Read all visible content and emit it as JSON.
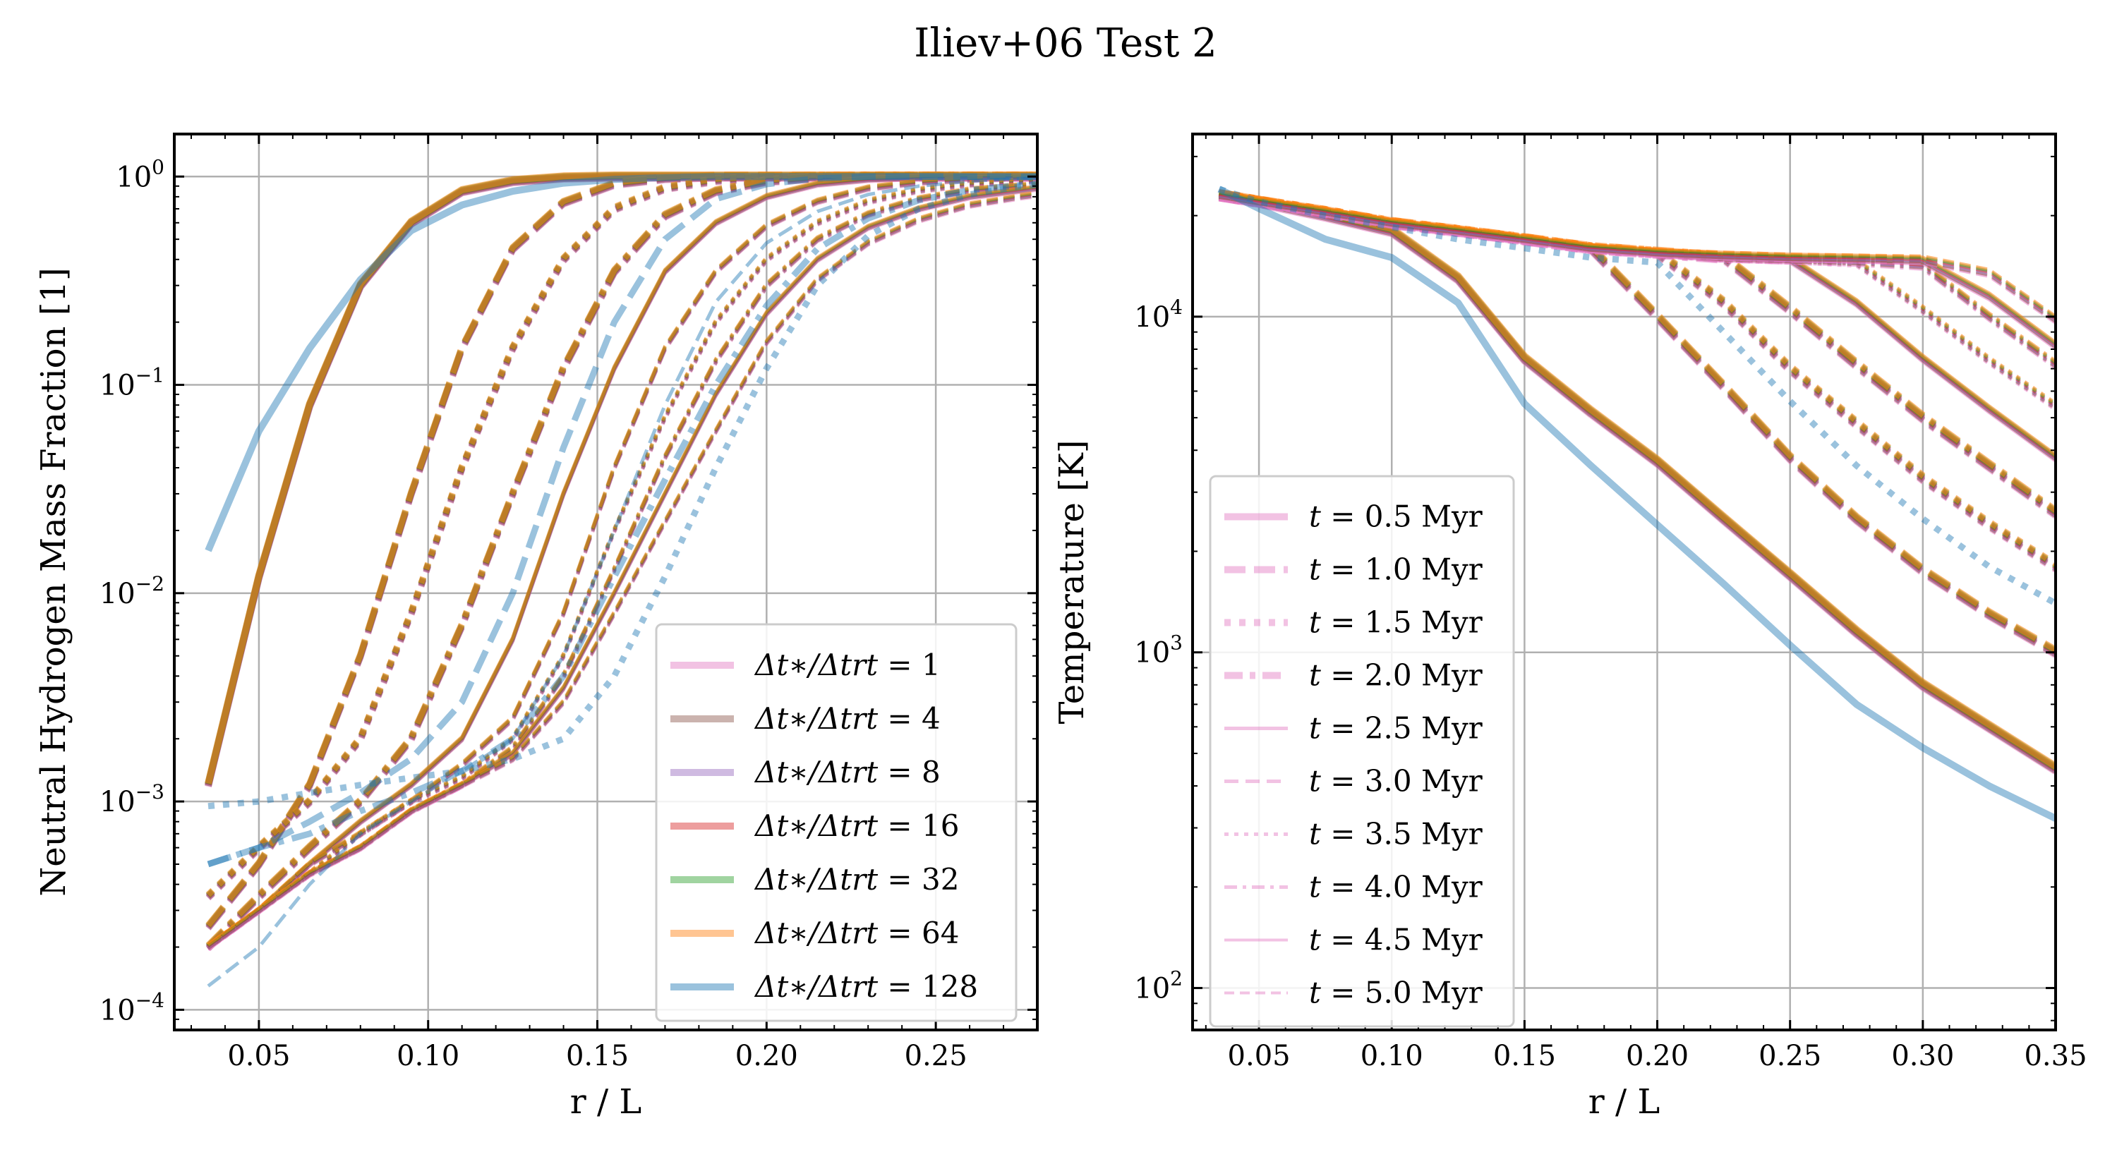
{
  "figure": {
    "title": "Iliev+06 Test 2"
  },
  "chart_data": [
    {
      "type": "line",
      "xlabel": "r / L",
      "ylabel": "Neutral Hydrogen Mass Fraction [1]",
      "xscale": "linear",
      "yscale": "log",
      "xlim": [
        0.025,
        0.28
      ],
      "ylim": [
        8e-05,
        1.6
      ],
      "grid": true,
      "legend_placement": "lower-right",
      "xticks": [
        {
          "v": 0.05,
          "label": "0.05"
        },
        {
          "v": 0.1,
          "label": "0.10"
        },
        {
          "v": 0.15,
          "label": "0.15"
        },
        {
          "v": 0.2,
          "label": "0.20"
        },
        {
          "v": 0.25,
          "label": "0.25"
        }
      ],
      "yticks": [
        {
          "v": 0.0001,
          "base": "10",
          "exp": "−4"
        },
        {
          "v": 0.001,
          "base": "10",
          "exp": "−3"
        },
        {
          "v": 0.01,
          "base": "10",
          "exp": "−2"
        },
        {
          "v": 0.1,
          "base": "10",
          "exp": "−1"
        },
        {
          "v": 1,
          "base": "10",
          "exp": "0"
        }
      ],
      "legend": [
        {
          "lhs": "Δt∗/Δtrt",
          "value": "1",
          "color": "#e377c2"
        },
        {
          "lhs": "Δt∗/Δtrt",
          "value": "4",
          "color": "#8c564b"
        },
        {
          "lhs": "Δt∗/Δtrt",
          "value": "8",
          "color": "#9467bd"
        },
        {
          "lhs": "Δt∗/Δtrt",
          "value": "16",
          "color": "#d62728"
        },
        {
          "lhs": "Δt∗/Δtrt",
          "value": "32",
          "color": "#2ca02c"
        },
        {
          "lhs": "Δt∗/Δtrt",
          "value": "64",
          "color": "#ff7f0e"
        },
        {
          "lhs": "Δt∗/Δtrt",
          "value": "128",
          "color": "#1f77b4"
        }
      ],
      "x": [
        0.035,
        0.05,
        0.065,
        0.08,
        0.095,
        0.11,
        0.125,
        0.14,
        0.155,
        0.17,
        0.185,
        0.2,
        0.215,
        0.23,
        0.245,
        0.26,
        0.275,
        0.28
      ],
      "series": [
        {
          "group": "converged",
          "style": "solid",
          "values": [
            0.0012,
            0.012,
            0.08,
            0.3,
            0.6,
            0.85,
            0.95,
            0.99,
            1,
            1,
            1,
            1,
            1,
            1,
            1,
            1,
            1,
            1
          ]
        },
        {
          "group": "converged",
          "style": "dashed",
          "values": [
            0.00025,
            0.0005,
            0.0012,
            0.005,
            0.03,
            0.15,
            0.45,
            0.75,
            0.92,
            0.98,
            1,
            1,
            1,
            1,
            1,
            1,
            1,
            1
          ]
        },
        {
          "group": "converged",
          "style": "dotted",
          "values": [
            0.00035,
            0.0006,
            0.001,
            0.002,
            0.008,
            0.04,
            0.15,
            0.4,
            0.7,
            0.88,
            0.96,
            0.99,
            1,
            1,
            1,
            1,
            1,
            1
          ]
        },
        {
          "group": "converged",
          "style": "dashdot",
          "values": [
            0.0002,
            0.00035,
            0.0006,
            0.001,
            0.002,
            0.007,
            0.03,
            0.12,
            0.35,
            0.65,
            0.85,
            0.95,
            0.99,
            1,
            1,
            1,
            1,
            1
          ]
        },
        {
          "group": "converged",
          "style": "thin-solid",
          "values": [
            0.0002,
            0.0003,
            0.0005,
            0.0008,
            0.0012,
            0.002,
            0.006,
            0.03,
            0.12,
            0.35,
            0.6,
            0.8,
            0.92,
            0.97,
            0.99,
            1,
            1,
            1
          ]
        },
        {
          "group": "converged",
          "style": "thin-dashed",
          "values": [
            0.0002,
            0.0003,
            0.0005,
            0.0007,
            0.001,
            0.0015,
            0.0025,
            0.008,
            0.04,
            0.15,
            0.35,
            0.58,
            0.76,
            0.88,
            0.94,
            0.97,
            0.99,
            1
          ]
        },
        {
          "group": "converged",
          "style": "thin-dotted",
          "values": [
            0.0002,
            0.0003,
            0.00045,
            0.0007,
            0.001,
            0.0013,
            0.002,
            0.005,
            0.02,
            0.07,
            0.2,
            0.4,
            0.6,
            0.76,
            0.86,
            0.92,
            0.95,
            0.96
          ]
        },
        {
          "group": "converged",
          "style": "thin-dashdot",
          "values": [
            0.0002,
            0.0003,
            0.00045,
            0.0006,
            0.0009,
            0.0012,
            0.0018,
            0.004,
            0.013,
            0.045,
            0.13,
            0.3,
            0.5,
            0.66,
            0.78,
            0.86,
            0.9,
            0.91
          ]
        },
        {
          "group": "converged",
          "style": "thin-solid2",
          "values": [
            0.0002,
            0.0003,
            0.00045,
            0.0006,
            0.0009,
            0.0012,
            0.0017,
            0.0035,
            0.01,
            0.03,
            0.09,
            0.22,
            0.4,
            0.57,
            0.7,
            0.8,
            0.86,
            0.88
          ]
        },
        {
          "group": "converged",
          "style": "thin-dashed2",
          "values": [
            0.0002,
            0.0003,
            0.00045,
            0.0006,
            0.0009,
            0.0012,
            0.0016,
            0.003,
            0.008,
            0.022,
            0.06,
            0.16,
            0.32,
            0.48,
            0.62,
            0.73,
            0.8,
            0.82
          ]
        },
        {
          "group": "dt128",
          "style": "solid",
          "values": [
            0.016,
            0.06,
            0.15,
            0.32,
            0.55,
            0.73,
            0.85,
            0.93,
            0.97,
            0.99,
            1,
            1,
            1,
            1,
            1,
            1,
            1,
            1
          ]
        },
        {
          "group": "dt128",
          "style": "thin-dashed",
          "values": [
            0.00013,
            0.0002,
            0.0004,
            0.0007,
            0.001,
            0.0014,
            0.002,
            0.005,
            0.02,
            0.08,
            0.25,
            0.48,
            0.68,
            0.82,
            0.9,
            0.95,
            0.98,
            0.98
          ]
        },
        {
          "group": "dt128",
          "style": "dotted",
          "values": [
            0.00095,
            0.001,
            0.0011,
            0.0012,
            0.0013,
            0.0014,
            0.0016,
            0.002,
            0.004,
            0.012,
            0.04,
            0.12,
            0.3,
            0.52,
            0.7,
            0.82,
            0.9,
            0.92
          ]
        },
        {
          "group": "dt128",
          "style": "dashed",
          "values": [
            0.0005,
            0.0006,
            0.0008,
            0.0011,
            0.0016,
            0.003,
            0.01,
            0.05,
            0.2,
            0.5,
            0.78,
            0.92,
            0.98,
            1,
            1,
            1,
            1,
            1
          ]
        },
        {
          "group": "dt128",
          "style": "dashdot",
          "values": [
            0.0005,
            0.0006,
            0.0007,
            0.0009,
            0.0011,
            0.0014,
            0.002,
            0.004,
            0.012,
            0.035,
            0.1,
            0.24,
            0.45,
            0.63,
            0.77,
            0.86,
            0.91,
            0.92
          ]
        }
      ]
    },
    {
      "type": "line",
      "xlabel": "r / L",
      "ylabel": "Temperature [K]",
      "xscale": "linear",
      "yscale": "log",
      "xlim": [
        0.025,
        0.35
      ],
      "ylim": [
        75,
        35000
      ],
      "grid": true,
      "legend_placement": "lower-left",
      "xticks": [
        {
          "v": 0.05,
          "label": "0.05"
        },
        {
          "v": 0.1,
          "label": "0.10"
        },
        {
          "v": 0.15,
          "label": "0.15"
        },
        {
          "v": 0.2,
          "label": "0.20"
        },
        {
          "v": 0.25,
          "label": "0.25"
        },
        {
          "v": 0.3,
          "label": "0.30"
        },
        {
          "v": 0.35,
          "label": "0.35"
        }
      ],
      "yticks": [
        {
          "v": 100,
          "base": "10",
          "exp": "2"
        },
        {
          "v": 1000,
          "base": "10",
          "exp": "3"
        },
        {
          "v": 10000,
          "base": "10",
          "exp": "4"
        }
      ],
      "legend": [
        {
          "lhs": "t",
          "value": "0.5 Myr",
          "style": "solid-thick"
        },
        {
          "lhs": "t",
          "value": "1.0 Myr",
          "style": "dashed-thick"
        },
        {
          "lhs": "t",
          "value": "1.5 Myr",
          "style": "dotted-thick"
        },
        {
          "lhs": "t",
          "value": "2.0 Myr",
          "style": "dashdot-thick"
        },
        {
          "lhs": "t",
          "value": "2.5 Myr",
          "style": "solid-thin"
        },
        {
          "lhs": "t",
          "value": "3.0 Myr",
          "style": "dashed-thin"
        },
        {
          "lhs": "t",
          "value": "3.5 Myr",
          "style": "dotted-thin"
        },
        {
          "lhs": "t",
          "value": "4.0 Myr",
          "style": "dashdot-thin"
        },
        {
          "lhs": "t",
          "value": "4.5 Myr",
          "style": "solid-thin2"
        },
        {
          "lhs": "t",
          "value": "5.0 Myr",
          "style": "dashed-thin2"
        }
      ],
      "legend_color": "#e377c2",
      "x": [
        0.035,
        0.05,
        0.075,
        0.1,
        0.125,
        0.15,
        0.175,
        0.2,
        0.225,
        0.25,
        0.275,
        0.3,
        0.325,
        0.35
      ],
      "series": [
        {
          "group": "converged",
          "style": "solid",
          "values": [
            23000,
            22000,
            20000,
            18000,
            13000,
            7500,
            5200,
            3700,
            2500,
            1700,
            1150,
            800,
            600,
            450
          ]
        },
        {
          "group": "converged",
          "style": "dashed",
          "values": [
            23000,
            22000,
            20500,
            19000,
            18000,
            17000,
            16000,
            10000,
            6200,
            3800,
            2500,
            1750,
            1300,
            1000
          ]
        },
        {
          "group": "converged",
          "style": "dotted",
          "values": [
            23000,
            22000,
            20500,
            19000,
            18000,
            17000,
            16000,
            15500,
            11000,
            7000,
            4800,
            3300,
            2400,
            1800
          ]
        },
        {
          "group": "converged",
          "style": "dashdot",
          "values": [
            23000,
            22000,
            20500,
            19000,
            18000,
            17000,
            16000,
            15500,
            15000,
            10500,
            7200,
            5000,
            3600,
            2600
          ]
        },
        {
          "group": "converged",
          "style": "thin-solid",
          "values": [
            23000,
            22000,
            20500,
            19000,
            18000,
            17000,
            16000,
            15500,
            15000,
            14800,
            11000,
            7500,
            5300,
            3800
          ]
        },
        {
          "group": "converged",
          "style": "thin-dotted",
          "values": [
            23000,
            22000,
            20500,
            19000,
            18000,
            17000,
            16000,
            15500,
            15000,
            14800,
            14500,
            10500,
            7400,
            5400
          ]
        },
        {
          "group": "converged",
          "style": "thin-dashdot",
          "values": [
            23000,
            22000,
            20500,
            19000,
            18000,
            17000,
            16000,
            15500,
            15000,
            14800,
            14600,
            14200,
            10000,
            7200
          ]
        },
        {
          "group": "converged",
          "style": "thin-solid2",
          "values": [
            23000,
            22000,
            20500,
            19000,
            18000,
            17000,
            16000,
            15500,
            15200,
            15000,
            14900,
            14700,
            11500,
            8200
          ]
        },
        {
          "group": "converged",
          "style": "thin-dashed2",
          "values": [
            23000,
            22000,
            20500,
            19000,
            18000,
            17000,
            16000,
            15500,
            15200,
            15000,
            14900,
            14800,
            13500,
            9800
          ]
        },
        {
          "group": "dt128",
          "style": "solid",
          "values": [
            24000,
            21000,
            17000,
            15000,
            11000,
            5500,
            3600,
            2400,
            1600,
            1050,
            700,
            520,
            400,
            320
          ]
        },
        {
          "group": "dt128",
          "style": "dotted",
          "values": [
            24000,
            22000,
            20000,
            18500,
            17000,
            16000,
            15000,
            14500,
            9000,
            5600,
            3600,
            2500,
            1800,
            1400
          ]
        }
      ]
    }
  ]
}
